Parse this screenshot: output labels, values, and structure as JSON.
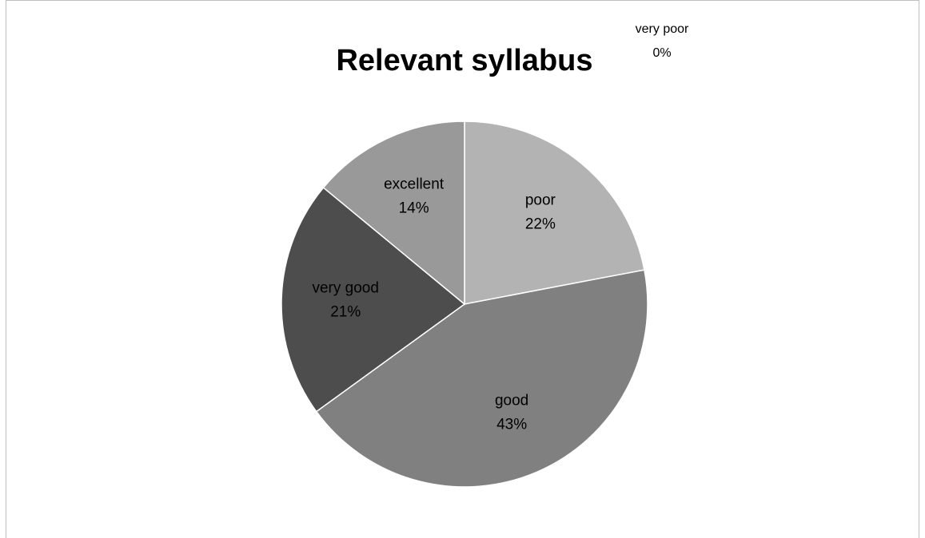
{
  "chart_data": {
    "type": "pie",
    "title": "Relevant syllabus",
    "categories": [
      "very poor",
      "poor",
      "good",
      "very good",
      "excellent"
    ],
    "values": [
      0,
      22,
      43,
      21,
      14
    ],
    "value_labels": [
      "0%",
      "22%",
      "43%",
      "21%",
      "14%"
    ],
    "colors": [
      "#d9d9d9",
      "#b3b3b3",
      "#808080",
      "#4d4d4d",
      "#999999"
    ]
  }
}
